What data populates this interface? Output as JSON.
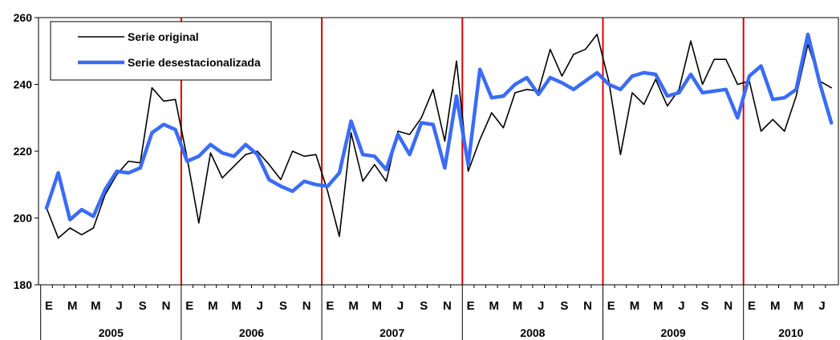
{
  "chart_data": {
    "type": "line",
    "title": "",
    "xlabel": "",
    "ylabel": "",
    "ylim": [
      180,
      260
    ],
    "yticks": [
      180,
      200,
      220,
      240,
      260
    ],
    "grid": false,
    "legend_position": "top-left",
    "month_tick_labels": [
      "E",
      "M",
      "M",
      "J",
      "S",
      "N"
    ],
    "years": [
      "2005",
      "2006",
      "2007",
      "2008",
      "2009",
      "2010"
    ],
    "months_per_year": [
      12,
      12,
      12,
      12,
      12,
      8
    ],
    "x": [
      "2005-01",
      "2005-02",
      "2005-03",
      "2005-04",
      "2005-05",
      "2005-06",
      "2005-07",
      "2005-08",
      "2005-09",
      "2005-10",
      "2005-11",
      "2005-12",
      "2006-01",
      "2006-02",
      "2006-03",
      "2006-04",
      "2006-05",
      "2006-06",
      "2006-07",
      "2006-08",
      "2006-09",
      "2006-10",
      "2006-11",
      "2006-12",
      "2007-01",
      "2007-02",
      "2007-03",
      "2007-04",
      "2007-05",
      "2007-06",
      "2007-07",
      "2007-08",
      "2007-09",
      "2007-10",
      "2007-11",
      "2007-12",
      "2008-01",
      "2008-02",
      "2008-03",
      "2008-04",
      "2008-05",
      "2008-06",
      "2008-07",
      "2008-08",
      "2008-09",
      "2008-10",
      "2008-11",
      "2008-12",
      "2009-01",
      "2009-02",
      "2009-03",
      "2009-04",
      "2009-05",
      "2009-06",
      "2009-07",
      "2009-08",
      "2009-09",
      "2009-10",
      "2009-11",
      "2009-12",
      "2010-01",
      "2010-02",
      "2010-03",
      "2010-04",
      "2010-05",
      "2010-06",
      "2010-07",
      "2010-08"
    ],
    "series": [
      {
        "name": "Serie original",
        "color": "#000000",
        "values": [
          203,
          194,
          197,
          195,
          197,
          207,
          213,
          217,
          216.5,
          239,
          235,
          235.5,
          218,
          198.5,
          219.5,
          212,
          215.5,
          219,
          220,
          216,
          211.5,
          220,
          218.5,
          219,
          208,
          194.5,
          225.5,
          211,
          216,
          211,
          226,
          225,
          230,
          238.5,
          223,
          247,
          214,
          223.5,
          231.5,
          227,
          237.5,
          238.5,
          238,
          250.5,
          242.5,
          249,
          250.5,
          255,
          241,
          219,
          237.5,
          234,
          241.5,
          233.5,
          238.5,
          253,
          240,
          247.5,
          247.5,
          240,
          241,
          226,
          229.5,
          226,
          236.5,
          252,
          241,
          239
        ]
      },
      {
        "name": "Serie desestacionalizada",
        "color": "#3b6cf5",
        "values": [
          203,
          213.5,
          199.5,
          202.5,
          200.5,
          208.5,
          214,
          213.5,
          215,
          225.5,
          228,
          226.5,
          217,
          218.5,
          222,
          219.5,
          218.5,
          222,
          219,
          211.5,
          209.5,
          208,
          211,
          210,
          209.5,
          213.5,
          229,
          219,
          218.5,
          214.5,
          225,
          219,
          228.5,
          228,
          215,
          236.5,
          216,
          244.5,
          236,
          236.5,
          240,
          242,
          237,
          242,
          240.5,
          238.5,
          241,
          243.5,
          240,
          238.5,
          242.5,
          243.5,
          243,
          236.5,
          237.5,
          243,
          237.5,
          238,
          238.5,
          230,
          242.5,
          245.5,
          235.5,
          236,
          238.5,
          255,
          240.5,
          228.5
        ]
      }
    ],
    "annotations": [
      {
        "type": "vertical_line",
        "color": "#e00000",
        "at": "2006-01"
      },
      {
        "type": "vertical_line",
        "color": "#e00000",
        "at": "2007-01"
      },
      {
        "type": "vertical_line",
        "color": "#e00000",
        "at": "2008-01"
      },
      {
        "type": "vertical_line",
        "color": "#e00000",
        "at": "2009-01"
      },
      {
        "type": "vertical_line",
        "color": "#e00000",
        "at": "2010-01"
      }
    ]
  }
}
